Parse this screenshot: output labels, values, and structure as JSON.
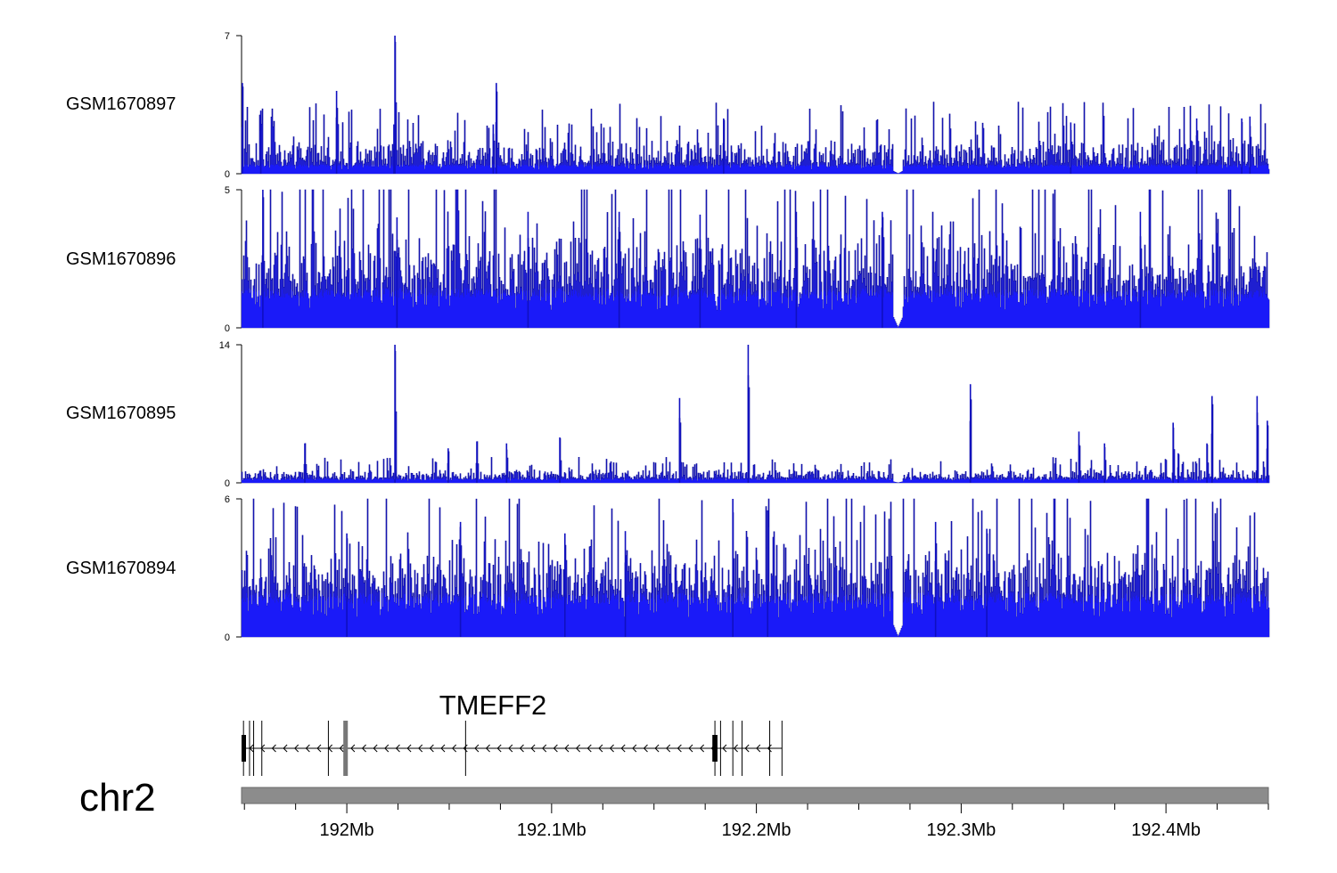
{
  "chart_data": {
    "type": "genome-coverage",
    "chromosome": "chr2",
    "x_unit": "Mb",
    "xlim": [
      191.9486,
      192.45
    ],
    "x_ticks": [
      {
        "value": 192.0,
        "label": "192Mb"
      },
      {
        "value": 192.1,
        "label": "192.1Mb"
      },
      {
        "value": 192.2,
        "label": "192.2Mb"
      },
      {
        "value": 192.3,
        "label": "192.3Mb"
      },
      {
        "value": 192.4,
        "label": "192.4Mb"
      }
    ],
    "series_color": "#1a1aff",
    "series": [
      {
        "name": "GSM1670897",
        "ylim": [
          0,
          7
        ],
        "ytick_labels": [
          "0",
          "7"
        ],
        "base": 0.4,
        "noise": 1.3,
        "gap": [
          192.2665,
          192.2715
        ],
        "peaks": [
          {
            "x": 191.949,
            "h": 4.6
          },
          {
            "x": 191.958,
            "h": 3.2
          },
          {
            "x": 191.995,
            "h": 4.2
          },
          {
            "x": 192.0235,
            "h": 7.0
          },
          {
            "x": 192.023,
            "h": 2.5
          },
          {
            "x": 192.073,
            "h": 4.6
          },
          {
            "x": 192.0715,
            "h": 2.5
          },
          {
            "x": 192.184,
            "h": 2.8
          },
          {
            "x": 192.3535,
            "h": 2.6
          },
          {
            "x": 192.415,
            "h": 2.8
          },
          {
            "x": 192.437,
            "h": 2.8
          },
          {
            "x": 192.441,
            "h": 2.9
          }
        ]
      },
      {
        "name": "GSM1670896",
        "ylim": [
          0,
          5
        ],
        "ytick_labels": [
          "0",
          "5"
        ],
        "base": 1.2,
        "noise": 2.0,
        "gap": [
          192.2665,
          192.2715
        ],
        "peaks": [
          {
            "x": 191.959,
            "h": 5.0
          },
          {
            "x": 192.0245,
            "h": 4.0
          },
          {
            "x": 192.0885,
            "h": 4.2
          },
          {
            "x": 192.133,
            "h": 4.2
          },
          {
            "x": 192.1725,
            "h": 4.1
          },
          {
            "x": 192.2195,
            "h": 4.2
          },
          {
            "x": 192.2615,
            "h": 4.2
          },
          {
            "x": 192.3875,
            "h": 4.2
          }
        ]
      },
      {
        "name": "GSM1670895",
        "ylim": [
          0,
          14
        ],
        "ytick_labels": [
          "0",
          "14"
        ],
        "base": 0.35,
        "noise": 0.9,
        "gap": [
          192.2665,
          192.2715
        ],
        "peaks": [
          {
            "x": 192.0235,
            "h": 14.0
          },
          {
            "x": 192.196,
            "h": 14.0
          },
          {
            "x": 192.1625,
            "h": 8.6
          },
          {
            "x": 192.3045,
            "h": 10.0
          },
          {
            "x": 192.3575,
            "h": 5.2
          },
          {
            "x": 192.104,
            "h": 4.6
          },
          {
            "x": 192.078,
            "h": 4.0
          },
          {
            "x": 192.37,
            "h": 4.0
          },
          {
            "x": 192.4035,
            "h": 6.1
          },
          {
            "x": 192.4225,
            "h": 8.8
          },
          {
            "x": 192.4445,
            "h": 8.8
          },
          {
            "x": 192.4495,
            "h": 6.3
          },
          {
            "x": 191.9795,
            "h": 4.0
          },
          {
            "x": 192.0635,
            "h": 4.2
          },
          {
            "x": 192.0495,
            "h": 3.5
          },
          {
            "x": 192.406,
            "h": 3.0
          },
          {
            "x": 192.42,
            "h": 4.0
          }
        ]
      },
      {
        "name": "GSM1670894",
        "ylim": [
          0,
          6
        ],
        "ytick_labels": [
          "0",
          "6"
        ],
        "base": 1.6,
        "noise": 2.1,
        "gap": [
          192.2665,
          192.2715
        ],
        "peaks": [
          {
            "x": 192.1885,
            "h": 6.0
          },
          {
            "x": 192.0555,
            "h": 5.0
          },
          {
            "x": 192.2055,
            "h": 5.5
          },
          {
            "x": 192.2875,
            "h": 5.0
          },
          {
            "x": 192.1065,
            "h": 4.5
          },
          {
            "x": 192.136,
            "h": 4.6
          },
          {
            "x": 192.3125,
            "h": 4.7
          },
          {
            "x": 192.0,
            "h": 4.5
          }
        ]
      }
    ],
    "gene": {
      "name": "TMEFF2",
      "strand": "-",
      "start": 191.9486,
      "end": 192.2126,
      "exons": [
        {
          "start": 191.9486,
          "end": 191.9505,
          "thick": true
        },
        {
          "start": 191.9525,
          "end": 191.9528
        },
        {
          "start": 191.9545,
          "end": 191.9548
        },
        {
          "start": 191.9585,
          "end": 191.9588
        },
        {
          "start": 191.991,
          "end": 191.9913
        },
        {
          "start": 191.9983,
          "end": 192.0005,
          "grey": true
        },
        {
          "start": 192.058,
          "end": 192.0583
        },
        {
          "start": 192.1785,
          "end": 192.181,
          "thick": true
        },
        {
          "start": 192.1825,
          "end": 192.1828
        },
        {
          "start": 192.1885,
          "end": 192.1888
        },
        {
          "start": 192.193,
          "end": 192.1933
        },
        {
          "start": 192.2065,
          "end": 192.2068
        },
        {
          "start": 192.2125,
          "end": 192.2128
        }
      ]
    }
  }
}
